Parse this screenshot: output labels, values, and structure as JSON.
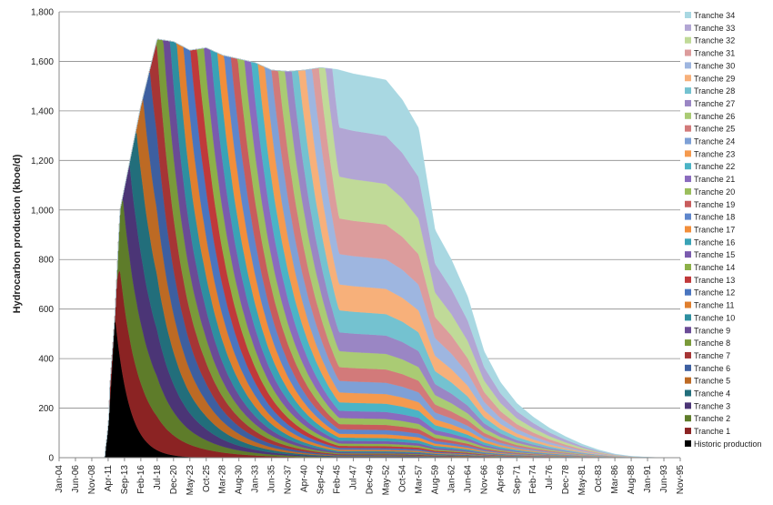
{
  "chart_data": {
    "type": "area",
    "stacked": true,
    "ylabel": "Hydrocarbon production (kboe/d)",
    "xlabel": "",
    "ylim": [
      0,
      1800
    ],
    "yticks": [
      0,
      200,
      400,
      600,
      800,
      1000,
      1200,
      1400,
      1600,
      1800
    ],
    "ytick_labels": [
      "0",
      "200",
      "400",
      "600",
      "800",
      "1,000",
      "1,200",
      "1,400",
      "1,600",
      "1,800"
    ],
    "xlim": [
      "Jan-04",
      "Nov-95"
    ],
    "xtick_labels": [
      "Jan-04",
      "Jun-06",
      "Nov-08",
      "Apr-11",
      "Sep-13",
      "Feb-16",
      "Jul-18",
      "Dec-20",
      "May-23",
      "Oct-25",
      "Mar-28",
      "Aug-30",
      "Jan-33",
      "Jun-35",
      "Nov-37",
      "Apr-40",
      "Sep-42",
      "Feb-45",
      "Jul-47",
      "Dec-49",
      "May-52",
      "Oct-54",
      "Mar-57",
      "Aug-59",
      "Jan-62",
      "Jun-64",
      "Nov-66",
      "Apr-69",
      "Sep-71",
      "Feb-74",
      "Jul-76",
      "Dec-78",
      "May-81",
      "Oct-83",
      "Mar-86",
      "Aug-88",
      "Jan-91",
      "Jun-93",
      "Nov-95"
    ],
    "grid": true,
    "legend_position": "right",
    "historic": {
      "name": "Historic production",
      "color": "#000000",
      "start": "Jun-09",
      "ramp_end": "Oct-10",
      "peak_date": "Apr-12",
      "peak": 575,
      "decline_years": 7,
      "end": "Sep-42"
    },
    "total_envelope": [
      {
        "x": "Oct-10",
        "y": 0
      },
      {
        "x": "Apr-12",
        "y": 575
      },
      {
        "x": "Jan-13",
        "y": 1000
      },
      {
        "x": "Feb-16",
        "y": 1420
      },
      {
        "x": "Jul-18",
        "y": 1690
      },
      {
        "x": "Dec-20",
        "y": 1680
      },
      {
        "x": "May-23",
        "y": 1645
      },
      {
        "x": "Oct-25",
        "y": 1655
      },
      {
        "x": "Mar-28",
        "y": 1625
      },
      {
        "x": "Aug-30",
        "y": 1610
      },
      {
        "x": "Jan-33",
        "y": 1595
      },
      {
        "x": "Jun-35",
        "y": 1565
      },
      {
        "x": "Nov-37",
        "y": 1560
      },
      {
        "x": "Apr-40",
        "y": 1565
      },
      {
        "x": "Sep-42",
        "y": 1575
      },
      {
        "x": "Feb-45",
        "y": 1568
      },
      {
        "x": "Jul-47",
        "y": 1550
      },
      {
        "x": "Dec-49",
        "y": 1538
      },
      {
        "x": "May-52",
        "y": 1525
      },
      {
        "x": "Oct-54",
        "y": 1445
      },
      {
        "x": "Mar-57",
        "y": 1330
      },
      {
        "x": "Aug-59",
        "y": 920
      },
      {
        "x": "Jan-62",
        "y": 800
      },
      {
        "x": "Jun-64",
        "y": 650
      },
      {
        "x": "Nov-66",
        "y": 430
      },
      {
        "x": "Apr-69",
        "y": 305
      },
      {
        "x": "Sep-71",
        "y": 220
      },
      {
        "x": "Feb-74",
        "y": 165
      },
      {
        "x": "Jul-76",
        "y": 120
      },
      {
        "x": "Dec-78",
        "y": 85
      },
      {
        "x": "May-81",
        "y": 55
      },
      {
        "x": "Oct-83",
        "y": 32
      },
      {
        "x": "Mar-86",
        "y": 15
      },
      {
        "x": "Aug-88",
        "y": 6
      },
      {
        "x": "Jan-91",
        "y": 2
      },
      {
        "x": "Jun-93",
        "y": 0
      }
    ],
    "series": [
      {
        "name": "Tranche 1",
        "color": "#8B2323",
        "start": "Jun-11"
      },
      {
        "name": "Tranche 2",
        "color": "#5E7C2A",
        "start": "Jun-12"
      },
      {
        "name": "Tranche 3",
        "color": "#4B3576",
        "start": "Jun-13"
      },
      {
        "name": "Tranche 4",
        "color": "#226E7B",
        "start": "Jun-14"
      },
      {
        "name": "Tranche 5",
        "color": "#BD6A24",
        "start": "Jun-15"
      },
      {
        "name": "Tranche 6",
        "color": "#3D5FA0",
        "start": "Jun-16"
      },
      {
        "name": "Tranche 7",
        "color": "#A63535",
        "start": "Jun-17"
      },
      {
        "name": "Tranche 8",
        "color": "#7A9A3A",
        "start": "Jun-18"
      },
      {
        "name": "Tranche 9",
        "color": "#6A4B96",
        "start": "Jun-19"
      },
      {
        "name": "Tranche 10",
        "color": "#2E8FA0",
        "start": "Jun-20"
      },
      {
        "name": "Tranche 11",
        "color": "#E07F2E",
        "start": "Jun-21"
      },
      {
        "name": "Tranche 12",
        "color": "#4A75BF",
        "start": "Jun-22"
      },
      {
        "name": "Tranche 13",
        "color": "#C0393A",
        "start": "Jun-23"
      },
      {
        "name": "Tranche 14",
        "color": "#8DB048",
        "start": "Jun-24"
      },
      {
        "name": "Tranche 15",
        "color": "#7A5BAE",
        "start": "Jun-25"
      },
      {
        "name": "Tranche 16",
        "color": "#3AA3B6",
        "start": "Jun-26"
      },
      {
        "name": "Tranche 17",
        "color": "#F28E3A",
        "start": "Jun-27"
      },
      {
        "name": "Tranche 18",
        "color": "#5E86CC",
        "start": "Jun-28"
      },
      {
        "name": "Tranche 19",
        "color": "#C85C5C",
        "start": "Jun-29"
      },
      {
        "name": "Tranche 20",
        "color": "#9BBE5C",
        "start": "Jun-30"
      },
      {
        "name": "Tranche 21",
        "color": "#8A6BBE",
        "start": "Jun-31"
      },
      {
        "name": "Tranche 22",
        "color": "#4BB4C6",
        "start": "Jun-32"
      },
      {
        "name": "Tranche 23",
        "color": "#F59A4E",
        "start": "Jun-33"
      },
      {
        "name": "Tranche 24",
        "color": "#7EA0D6",
        "start": "Jun-34"
      },
      {
        "name": "Tranche 25",
        "color": "#D27A7A",
        "start": "Jun-35"
      },
      {
        "name": "Tranche 26",
        "color": "#AACB74",
        "start": "Jun-36"
      },
      {
        "name": "Tranche 27",
        "color": "#9A86C4",
        "start": "Jun-37"
      },
      {
        "name": "Tranche 28",
        "color": "#74C2D0",
        "start": "Jun-38"
      },
      {
        "name": "Tranche 29",
        "color": "#F7B07A",
        "start": "Jun-39"
      },
      {
        "name": "Tranche 30",
        "color": "#9EB6E0",
        "start": "Jun-40"
      },
      {
        "name": "Tranche 31",
        "color": "#DC9C9C",
        "start": "Jun-41"
      },
      {
        "name": "Tranche 32",
        "color": "#C0DA98",
        "start": "Jun-42"
      },
      {
        "name": "Tranche 33",
        "color": "#B2A6D4",
        "start": "Jun-43"
      },
      {
        "name": "Tranche 34",
        "color": "#A9D8E2",
        "start": "Jun-44"
      }
    ]
  }
}
